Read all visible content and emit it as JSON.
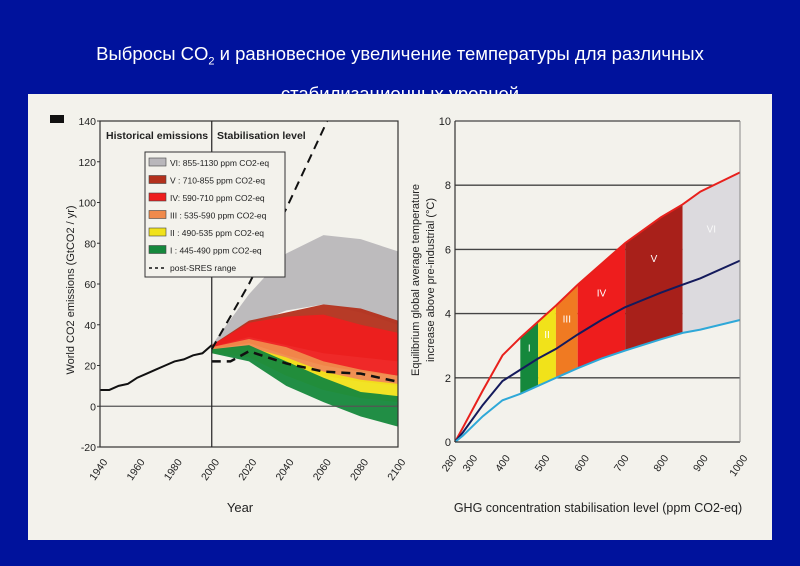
{
  "slide": {
    "title_line1_prefix": "Выбросы CO",
    "title_line1_sub": "2",
    "title_line1_suffix": " и равновесное увеличение температуры для различных",
    "title_line2": "стабилизационных уровней"
  },
  "chart_data": [
    {
      "type": "area",
      "title": "",
      "section_labels": [
        "Historical emissions",
        "Stabilisation level"
      ],
      "xlabel": "Year",
      "ylabel": "World CO2 emissions (GtCO2 / yr)",
      "xlim": [
        1940,
        2100
      ],
      "ylim": [
        -20,
        140
      ],
      "xticks": [
        1940,
        1960,
        1980,
        2000,
        2020,
        2040,
        2060,
        2080,
        2100
      ],
      "yticks": [
        -20,
        0,
        20,
        40,
        60,
        80,
        100,
        120,
        140
      ],
      "legend_position": "top-left",
      "legend": [
        {
          "label": "VI: 855-1130 ppm CO2-eq",
          "color": "#b9b7bb"
        },
        {
          "label": "V : 710-855 ppm CO2-eq",
          "color": "#b3301c"
        },
        {
          "label": "IV: 590-710 ppm CO2-eq",
          "color": "#ee1d1d"
        },
        {
          "label": "III : 535-590 ppm CO2-eq",
          "color": "#f08a4b"
        },
        {
          "label": "II : 490-535 ppm CO2-eq",
          "color": "#f1e21a"
        },
        {
          "label": "I : 445-490 ppm CO2-eq",
          "color": "#15883c"
        },
        {
          "label": "post-SRES range",
          "color": "#111111"
        }
      ],
      "band_x": [
        2000,
        2020,
        2040,
        2060,
        2080,
        2100
      ],
      "bands": [
        {
          "name": "VI",
          "color": "#b9b7bb",
          "upper": [
            30,
            55,
            75,
            84,
            82,
            76
          ],
          "lower": [
            30,
            40,
            47,
            50,
            46,
            40
          ]
        },
        {
          "name": "V",
          "color": "#b3301c",
          "upper": [
            30,
            42,
            46,
            50,
            48,
            42
          ],
          "lower": [
            29,
            34,
            30,
            26,
            24,
            22
          ]
        },
        {
          "name": "IV",
          "color": "#ee1d1d",
          "upper": [
            30,
            41,
            44,
            45,
            40,
            36
          ],
          "lower": [
            28,
            31,
            25,
            20,
            17,
            15
          ]
        },
        {
          "name": "III",
          "color": "#f08a4b",
          "upper": [
            29,
            33,
            29,
            22,
            18,
            15
          ],
          "lower": [
            27,
            27,
            21,
            15,
            12,
            10
          ]
        },
        {
          "name": "II",
          "color": "#f1e21a",
          "upper": [
            28,
            29,
            24,
            17,
            13,
            11
          ],
          "lower": [
            26,
            24,
            15,
            8,
            4,
            2
          ]
        },
        {
          "name": "I",
          "color": "#15883c",
          "upper": [
            28,
            30,
            22,
            14,
            7,
            5
          ],
          "lower": [
            26,
            22,
            10,
            2,
            -5,
            -10
          ]
        }
      ],
      "historical": {
        "x": [
          1940,
          1945,
          1950,
          1955,
          1960,
          1965,
          1970,
          1975,
          1980,
          1985,
          1990,
          1995,
          2000
        ],
        "y": [
          8,
          8,
          10,
          11,
          14,
          16,
          18,
          20,
          22,
          23,
          25,
          26,
          30
        ]
      },
      "post_sres_upper": {
        "x": [
          2000,
          2020,
          2040,
          2062
        ],
        "y": [
          28,
          60,
          97,
          140
        ]
      },
      "post_sres_lower": {
        "x": [
          2000,
          2010,
          2020,
          2030,
          2040,
          2060,
          2080,
          2100
        ],
        "y": [
          22,
          22,
          27,
          24,
          21,
          17,
          16,
          12
        ]
      }
    },
    {
      "type": "line",
      "xlabel": "GHG concentration stabilisation level (ppm CO2-eq)",
      "ylabel_line1": "Equilibrium global average temperature",
      "ylabel_line2": "increase above pre-industrial (°C)",
      "xlim": [
        280,
        1000
      ],
      "ylim": [
        0,
        10
      ],
      "xticks": [
        280,
        300,
        400,
        500,
        600,
        700,
        800,
        900,
        1000
      ],
      "yticks": [
        0,
        2,
        4,
        6,
        8,
        10
      ],
      "grid_y": [
        2,
        4,
        6,
        8
      ],
      "x": [
        280,
        300,
        350,
        400,
        445,
        490,
        535,
        590,
        650,
        710,
        800,
        855,
        900,
        1000
      ],
      "series": [
        {
          "name": "upper",
          "color": "#e8201c",
          "values": [
            0,
            0.45,
            1.6,
            2.7,
            3.25,
            3.75,
            4.25,
            4.9,
            5.55,
            6.2,
            7.0,
            7.4,
            7.8,
            8.4
          ]
        },
        {
          "name": "best estimate",
          "color": "#141a5c",
          "values": [
            0,
            0.3,
            1.15,
            1.9,
            2.25,
            2.6,
            2.9,
            3.35,
            3.8,
            4.2,
            4.65,
            4.9,
            5.1,
            5.65
          ]
        },
        {
          "name": "lower",
          "color": "#2ea8d8",
          "values": [
            0,
            0.2,
            0.8,
            1.3,
            1.5,
            1.75,
            2.0,
            2.3,
            2.6,
            2.85,
            3.2,
            3.4,
            3.5,
            3.8
          ]
        }
      ],
      "bands": [
        {
          "label": "I",
          "from": 445,
          "to": 490,
          "color": "#15883c"
        },
        {
          "label": "II",
          "from": 490,
          "to": 535,
          "color": "#f1e21a"
        },
        {
          "label": "III",
          "from": 535,
          "to": 590,
          "color": "#f07a22"
        },
        {
          "label": "IV",
          "from": 590,
          "to": 710,
          "color": "#ee1d1d"
        },
        {
          "label": "V",
          "from": 710,
          "to": 855,
          "color": "#a8201a"
        },
        {
          "label": "VI",
          "from": 855,
          "to": 1000,
          "color": "#dcdade"
        }
      ]
    }
  ]
}
